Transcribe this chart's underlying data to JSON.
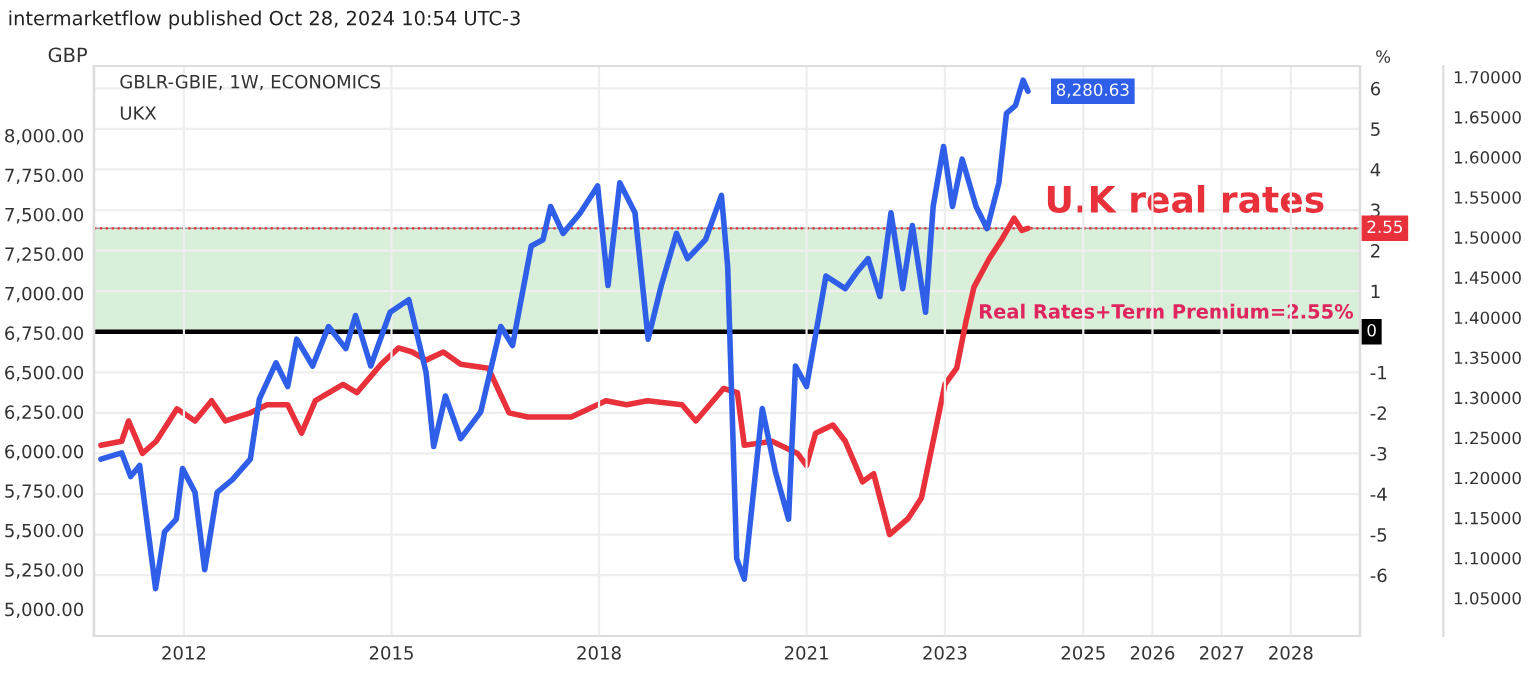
{
  "chart_data": {
    "type": "line",
    "title": "intermarketflow published Oct 28, 2024 10:54 UTC-3",
    "subtitle": "GBLR-GBIE, 1W, ECONOMICS",
    "ylabel": "GBP",
    "y2label": "%",
    "annotations": [
      "UKX",
      {
        "text": "8,280.63",
        "x": 2024.2,
        "y": 8280.63
      }
    ],
    "series": [
      {
        "color": "#2f5fe8",
        "x": [
          2010.8,
          2011.1,
          2011.23,
          2011.36,
          2011.59,
          2011.72,
          2011.89,
          2011.98,
          2012.16,
          2012.3,
          2012.48,
          2012.7,
          2012.96,
          2013.09,
          2013.33,
          2013.5,
          2013.63,
          2013.86,
          2014.09,
          2014.34,
          2014.48,
          2014.7,
          2014.98,
          2015.25,
          2015.5,
          2015.61,
          2015.78,
          2016.0,
          2016.29,
          2016.58,
          2016.75,
          2017.02,
          2017.19,
          2017.3,
          2017.48,
          2017.73,
          2017.98,
          2018.13,
          2018.3,
          2018.52,
          2018.71,
          2018.9,
          2019.12,
          2019.28,
          2019.54,
          2019.77,
          2019.86,
          2019.99,
          2020.1,
          2020.36,
          2020.55,
          2020.74,
          2020.84,
          2021.0,
          2021.28,
          2021.56,
          2021.72,
          2021.89,
          2022.06,
          2022.22,
          2022.39,
          2022.53,
          2022.72,
          2022.83,
          2022.98,
          2023.11,
          2023.25,
          2023.45,
          2023.61,
          2023.78,
          2023.89,
          2024.02,
          2024.13,
          2024.2
        ],
        "values": [
          5950,
          5990,
          5840,
          5910,
          5130,
          5490,
          5570,
          5890,
          5740,
          5250,
          5740,
          5820,
          5950,
          6330,
          6560,
          6410,
          6710,
          6540,
          6790,
          6650,
          6860,
          6540,
          6880,
          6960,
          6500,
          6030,
          6350,
          6080,
          6250,
          6790,
          6670,
          7300,
          7340,
          7550,
          7380,
          7510,
          7680,
          7050,
          7700,
          7510,
          6710,
          7050,
          7380,
          7220,
          7340,
          7620,
          7170,
          5320,
          5190,
          6270,
          5870,
          5570,
          6540,
          6410,
          7110,
          7030,
          7130,
          7220,
          6980,
          7510,
          7030,
          7430,
          6880,
          7550,
          7930,
          7550,
          7850,
          7550,
          7410,
          7700,
          8140,
          8190,
          8350,
          8280.63
        ]
      },
      {
        "name": "U.K real rates",
        "color": "#e8313a",
        "axis": "y2",
        "x": [
          2010.8,
          2011.1,
          2011.2,
          2011.4,
          2011.6,
          2011.9,
          2012.16,
          2012.4,
          2012.6,
          2012.96,
          2013.2,
          2013.5,
          2013.7,
          2013.9,
          2014.3,
          2014.5,
          2014.85,
          2015.1,
          2015.3,
          2015.5,
          2015.75,
          2016.0,
          2016.4,
          2016.7,
          2016.97,
          2017.6,
          2018.1,
          2018.4,
          2018.7,
          2019.2,
          2019.4,
          2019.8,
          2020.0,
          2020.1,
          2020.5,
          2020.87,
          2021.0,
          2021.13,
          2021.38,
          2021.56,
          2021.81,
          2021.97,
          2022.2,
          2022.47,
          2022.66,
          2022.83,
          2023.0,
          2023.17,
          2023.31,
          2023.42,
          2023.64,
          2023.83,
          2024.0,
          2024.11,
          2024.2
        ],
        "values": [
          -2.8,
          -2.7,
          -2.2,
          -3.0,
          -2.7,
          -1.9,
          -2.2,
          -1.7,
          -2.2,
          -2.0,
          -1.8,
          -1.8,
          -2.5,
          -1.7,
          -1.3,
          -1.5,
          -0.8,
          -0.4,
          -0.5,
          -0.7,
          -0.5,
          -0.8,
          -0.9,
          -2.0,
          -2.1,
          -2.1,
          -1.7,
          -1.8,
          -1.7,
          -1.8,
          -2.2,
          -1.4,
          -1.5,
          -2.8,
          -2.7,
          -3.0,
          -3.3,
          -2.5,
          -2.3,
          -2.7,
          -3.7,
          -3.5,
          -5.0,
          -4.6,
          -4.1,
          -2.7,
          -1.3,
          -0.9,
          0.3,
          1.1,
          1.8,
          2.3,
          2.8,
          2.5,
          2.55
        ]
      }
    ],
    "xlim": [
      2010.7,
      2029.0
    ],
    "xticks": [
      2012,
      2015,
      2018,
      2021,
      2023,
      2025,
      2026,
      2027,
      2028
    ],
    "ylim": [
      4830,
      8440
    ],
    "yticks": [
      {
        "value": 5000,
        "label": "5,000.00"
      },
      {
        "value": 5250,
        "label": "5,250.00"
      },
      {
        "value": 5500,
        "label": "5,500.00"
      },
      {
        "value": 5750,
        "label": "5,750.00"
      },
      {
        "value": 6000,
        "label": "6,000.00"
      },
      {
        "value": 6250,
        "label": "6,250.00"
      },
      {
        "value": 6500,
        "label": "6,500.00"
      },
      {
        "value": 6750,
        "label": "6,750.00"
      },
      {
        "value": 7000,
        "label": "7,000.00"
      },
      {
        "value": 7250,
        "label": "7,250.00"
      },
      {
        "value": 7500,
        "label": "7,500.00"
      },
      {
        "value": 7750,
        "label": "7,750.00"
      },
      {
        "value": 8000,
        "label": "8,000.00"
      }
    ],
    "y2lim": [
      -7.5,
      6.55
    ],
    "y2ticks": [
      -6,
      -5,
      -4,
      -3,
      -2,
      -1,
      0,
      1,
      2,
      3,
      4,
      5,
      6
    ],
    "y3lim": [
      1.0026,
      1.7137
    ],
    "y3ticks": [
      {
        "value": 1.05,
        "label": "1.05000"
      },
      {
        "value": 1.1,
        "label": "1.10000"
      },
      {
        "value": 1.15,
        "label": "1.15000"
      },
      {
        "value": 1.2,
        "label": "1.20000"
      },
      {
        "value": 1.25,
        "label": "1.25000"
      },
      {
        "value": 1.3,
        "label": "1.30000"
      },
      {
        "value": 1.35,
        "label": "1.35000"
      },
      {
        "value": 1.4,
        "label": "1.40000"
      },
      {
        "value": 1.45,
        "label": "1.45000"
      },
      {
        "value": 1.5,
        "label": "1.50000"
      },
      {
        "value": 1.55,
        "label": "1.55000"
      },
      {
        "value": 1.6,
        "label": "1.60000"
      },
      {
        "value": 1.65,
        "label": "1.65000"
      },
      {
        "value": 1.7,
        "label": "1.70000"
      }
    ],
    "ref_lines": [
      {
        "axis": "y2",
        "value": 2.55,
        "label": "2.55",
        "color": "#e8313a",
        "line_style": "dotted"
      },
      {
        "axis": "y2",
        "value": 0,
        "label": "0",
        "color": "#000000",
        "line_style": "solid"
      }
    ],
    "bands": [
      {
        "axis": "y2",
        "from": 0,
        "to": 2.55,
        "label": "Real Rates+Term Premium=2.55%",
        "color": "#d9efd9"
      }
    ],
    "grid": true,
    "line_style": "solid"
  }
}
